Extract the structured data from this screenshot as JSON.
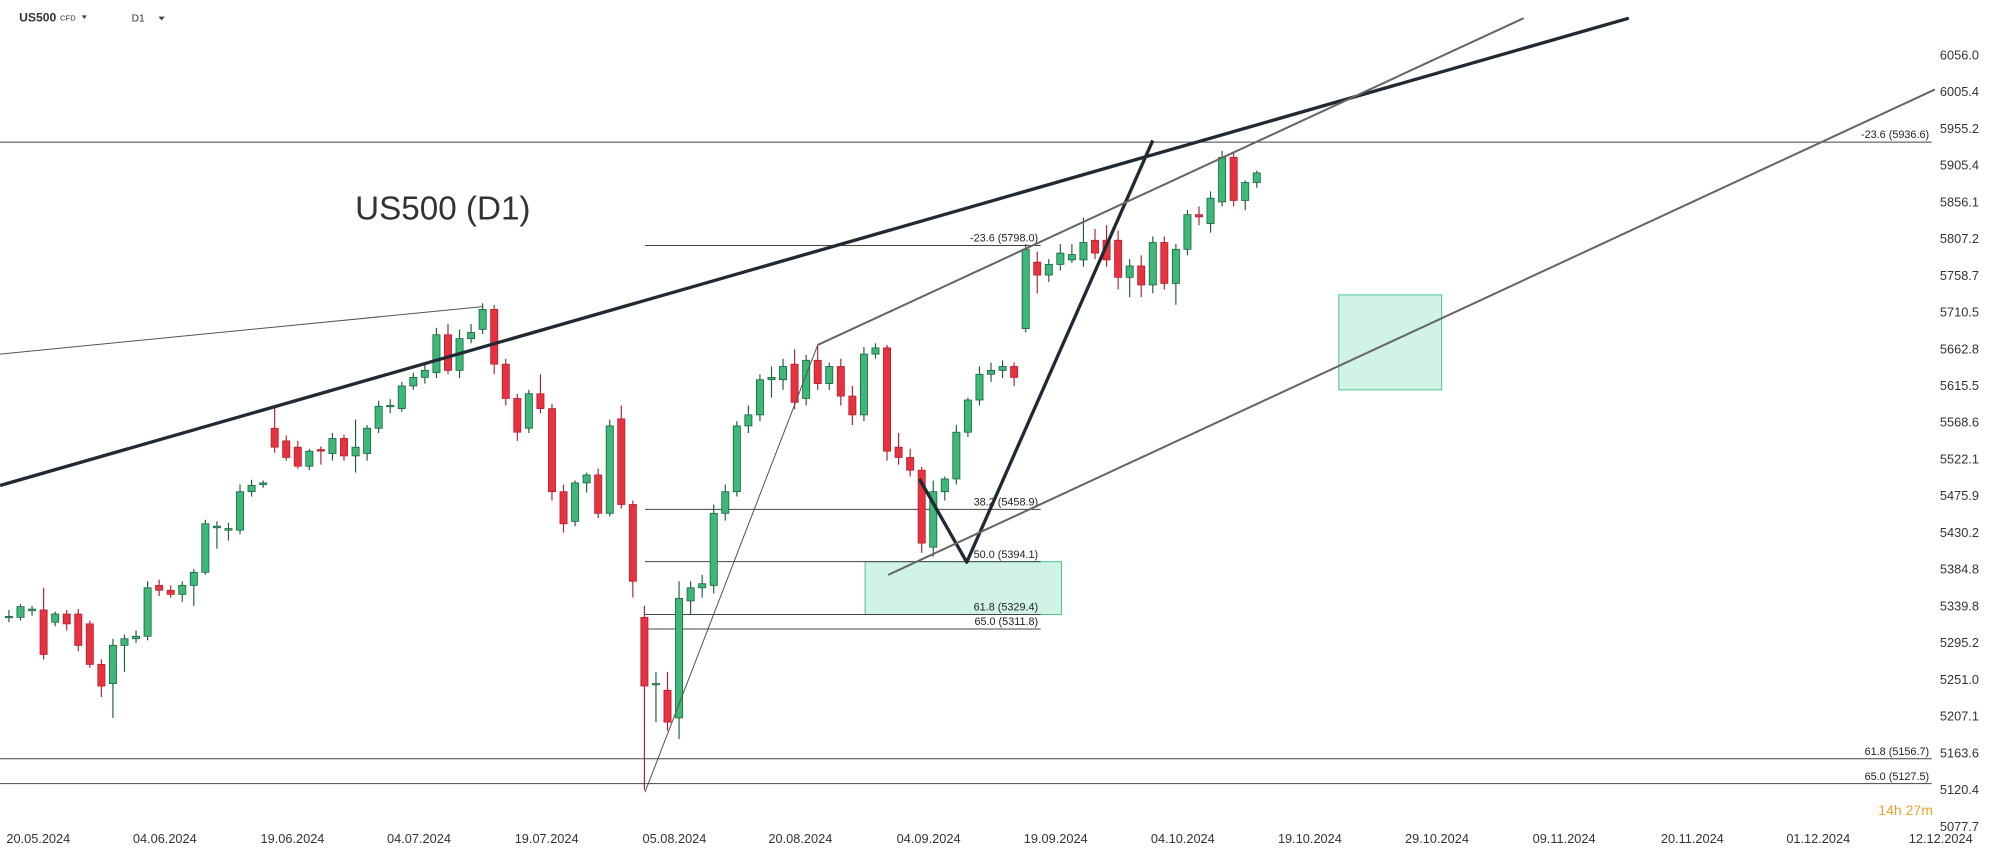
{
  "toolbar": {
    "symbol": "US500",
    "symbol_type": "CFD",
    "interval": "D1"
  },
  "countdown": "14h 27m",
  "chart_data": {
    "type": "candlestick",
    "title": "US500 (D1)",
    "log_scale": true,
    "colors": {
      "up": "#3cb878",
      "down": "#e8323f",
      "up_border": "#1b5e3a",
      "down_border": "#b01f2c"
    },
    "xlim": [
      -0.774,
      167.3
    ],
    "xticks": [
      {
        "value": 2.54,
        "label": "20.05.2024"
      },
      {
        "value": 13.49,
        "label": "04.06.2024"
      },
      {
        "value": 24.54,
        "label": "19.06.2024"
      },
      {
        "value": 35.49,
        "label": "04.07.2024"
      },
      {
        "value": 46.54,
        "label": "19.07.2024"
      },
      {
        "value": 57.6,
        "label": "05.08.2024"
      },
      {
        "value": 68.5,
        "label": "20.08.2024"
      },
      {
        "value": 79.6,
        "label": "04.09.2024"
      },
      {
        "value": 90.6,
        "label": "19.09.2024"
      },
      {
        "value": 101.6,
        "label": "04.10.2024"
      },
      {
        "value": 112.6,
        "label": "19.10.2024"
      },
      {
        "value": 123.6,
        "label": "29.10.2024"
      },
      {
        "value": 134.6,
        "label": "09.11.2024"
      },
      {
        "value": 145.7,
        "label": "20.11.2024"
      },
      {
        "value": 156.6,
        "label": "01.12.2024"
      },
      {
        "value": 167.2,
        "label": "12.12.2024"
      }
    ],
    "ylim": [
      5077.7,
      6132.4
    ],
    "yticks": [
      {
        "value": 6056,
        "label": "6056.0"
      },
      {
        "value": 6005.4,
        "label": "6005.4"
      },
      {
        "value": 5955.2,
        "label": "5955.2"
      },
      {
        "value": 5905.4,
        "label": "5905.4"
      },
      {
        "value": 5856.1,
        "label": "5856.1"
      },
      {
        "value": 5807.2,
        "label": "5807.2"
      },
      {
        "value": 5758.7,
        "label": "5758.7"
      },
      {
        "value": 5710.5,
        "label": "5710.5"
      },
      {
        "value": 5662.8,
        "label": "5662.8"
      },
      {
        "value": 5615.5,
        "label": "5615.5"
      },
      {
        "value": 5568.6,
        "label": "5568.6"
      },
      {
        "value": 5522.1,
        "label": "5522.1"
      },
      {
        "value": 5475.9,
        "label": "5475.9"
      },
      {
        "value": 5430.2,
        "label": "5430.2"
      },
      {
        "value": 5384.8,
        "label": "5384.8"
      },
      {
        "value": 5339.8,
        "label": "5339.8"
      },
      {
        "value": 5295.2,
        "label": "5295.2"
      },
      {
        "value": 5251,
        "label": "5251.0"
      },
      {
        "value": 5207.1,
        "label": "5207.1"
      },
      {
        "value": 5163.6,
        "label": "5163.6"
      },
      {
        "value": 5120.4,
        "label": "5120.4"
      },
      {
        "value": 5077.7,
        "label": "5077.7"
      }
    ],
    "ohlc": [
      [
        5326,
        5335,
        5320,
        5327
      ],
      [
        5326,
        5342,
        5322,
        5339
      ],
      [
        5334,
        5340,
        5328,
        5336
      ],
      [
        5335,
        5362,
        5275,
        5281
      ],
      [
        5320,
        5333,
        5315,
        5330
      ],
      [
        5330,
        5335,
        5310,
        5318
      ],
      [
        5330,
        5336,
        5285,
        5292
      ],
      [
        5318,
        5322,
        5265,
        5269
      ],
      [
        5269,
        5275,
        5230,
        5243
      ],
      [
        5246,
        5300,
        5205,
        5292
      ],
      [
        5292,
        5305,
        5260,
        5300
      ],
      [
        5300,
        5310,
        5295,
        5303
      ],
      [
        5303,
        5370,
        5298,
        5362
      ],
      [
        5365,
        5372,
        5352,
        5359
      ],
      [
        5359,
        5365,
        5350,
        5354
      ],
      [
        5354,
        5370,
        5345,
        5365
      ],
      [
        5365,
        5385,
        5340,
        5381
      ],
      [
        5381,
        5446,
        5378,
        5441
      ],
      [
        5436,
        5444,
        5410,
        5438
      ],
      [
        5433,
        5442,
        5420,
        5435
      ],
      [
        5433,
        5490,
        5428,
        5481
      ],
      [
        5481,
        5496,
        5475,
        5489
      ],
      [
        5490,
        5495,
        5486,
        5492
      ],
      [
        5561,
        5590,
        5530,
        5537
      ],
      [
        5545,
        5552,
        5520,
        5524
      ],
      [
        5537,
        5545,
        5510,
        5513
      ],
      [
        5513,
        5535,
        5508,
        5532
      ],
      [
        5534,
        5538,
        5515,
        5532
      ],
      [
        5529,
        5555,
        5520,
        5548
      ],
      [
        5548,
        5553,
        5520,
        5526
      ],
      [
        5526,
        5572,
        5505,
        5537
      ],
      [
        5529,
        5565,
        5520,
        5561
      ],
      [
        5561,
        5596,
        5555,
        5589
      ],
      [
        5589,
        5598,
        5580,
        5590
      ],
      [
        5586,
        5620,
        5582,
        5615
      ],
      [
        5615,
        5632,
        5610,
        5626
      ],
      [
        5626,
        5642,
        5618,
        5635
      ],
      [
        5632,
        5690,
        5625,
        5681
      ],
      [
        5681,
        5695,
        5630,
        5635
      ],
      [
        5635,
        5688,
        5625,
        5676
      ],
      [
        5676,
        5695,
        5670,
        5684
      ],
      [
        5688,
        5722,
        5682,
        5714
      ],
      [
        5714,
        5720,
        5630,
        5643
      ],
      [
        5643,
        5650,
        5590,
        5599
      ],
      [
        5599,
        5605,
        5545,
        5556
      ],
      [
        5561,
        5610,
        5555,
        5605
      ],
      [
        5605,
        5630,
        5580,
        5586
      ],
      [
        5586,
        5592,
        5470,
        5481
      ],
      [
        5481,
        5490,
        5430,
        5441
      ],
      [
        5444,
        5495,
        5438,
        5492
      ],
      [
        5492,
        5505,
        5480,
        5502
      ],
      [
        5502,
        5510,
        5448,
        5454
      ],
      [
        5454,
        5572,
        5450,
        5564
      ],
      [
        5573,
        5590,
        5460,
        5465
      ],
      [
        5465,
        5470,
        5350,
        5370
      ],
      [
        5326,
        5340,
        5120,
        5243
      ],
      [
        5246,
        5260,
        5200,
        5246
      ],
      [
        5238,
        5260,
        5190,
        5200
      ],
      [
        5205,
        5370,
        5180,
        5349
      ],
      [
        5346,
        5370,
        5330,
        5362
      ],
      [
        5362,
        5378,
        5350,
        5367
      ],
      [
        5365,
        5465,
        5355,
        5454
      ],
      [
        5454,
        5490,
        5445,
        5481
      ],
      [
        5481,
        5570,
        5475,
        5564
      ],
      [
        5564,
        5590,
        5555,
        5578
      ],
      [
        5578,
        5630,
        5570,
        5623
      ],
      [
        5623,
        5640,
        5600,
        5626
      ],
      [
        5623,
        5650,
        5610,
        5640
      ],
      [
        5643,
        5662,
        5585,
        5594
      ],
      [
        5599,
        5655,
        5590,
        5648
      ],
      [
        5648,
        5668,
        5610,
        5618
      ],
      [
        5618,
        5645,
        5610,
        5640
      ],
      [
        5640,
        5650,
        5590,
        5602
      ],
      [
        5602,
        5615,
        5565,
        5578
      ],
      [
        5578,
        5665,
        5570,
        5656
      ],
      [
        5656,
        5670,
        5650,
        5664
      ],
      [
        5664,
        5668,
        5520,
        5532
      ],
      [
        5537,
        5555,
        5515,
        5524
      ],
      [
        5524,
        5535,
        5500,
        5508
      ],
      [
        5508,
        5512,
        5405,
        5417
      ],
      [
        5412,
        5495,
        5400,
        5481
      ],
      [
        5481,
        5500,
        5470,
        5497
      ],
      [
        5497,
        5565,
        5490,
        5556
      ],
      [
        5556,
        5600,
        5550,
        5597
      ],
      [
        5597,
        5640,
        5590,
        5630
      ],
      [
        5630,
        5645,
        5620,
        5635
      ],
      [
        5635,
        5648,
        5625,
        5640
      ],
      [
        5640,
        5645,
        5615,
        5626
      ],
      [
        5689,
        5800,
        5684,
        5793
      ],
      [
        5776,
        5790,
        5735,
        5759
      ],
      [
        5759,
        5780,
        5750,
        5773
      ],
      [
        5773,
        5800,
        5765,
        5788
      ],
      [
        5779,
        5800,
        5775,
        5786
      ],
      [
        5779,
        5835,
        5770,
        5802
      ],
      [
        5805,
        5820,
        5780,
        5788
      ],
      [
        5805,
        5825,
        5770,
        5779
      ],
      [
        5805,
        5818,
        5740,
        5756
      ],
      [
        5756,
        5780,
        5730,
        5771
      ],
      [
        5771,
        5785,
        5730,
        5746
      ],
      [
        5746,
        5810,
        5735,
        5802
      ],
      [
        5802,
        5810,
        5740,
        5748
      ],
      [
        5748,
        5800,
        5720,
        5793
      ],
      [
        5793,
        5845,
        5785,
        5839
      ],
      [
        5839,
        5850,
        5825,
        5836
      ],
      [
        5827,
        5870,
        5815,
        5861
      ],
      [
        5856,
        5925,
        5850,
        5916
      ],
      [
        5916,
        5922,
        5850,
        5858
      ],
      [
        5858,
        5885,
        5845,
        5882
      ],
      [
        5882,
        5898,
        5875,
        5895
      ]
    ],
    "fib_levels": [
      {
        "label": "-23.6 (5936.6)",
        "price": 5936.6,
        "span": "full"
      },
      {
        "label": "61.8 (5156.7)",
        "price": 5156.7,
        "span": "full"
      },
      {
        "label": "65.0 (5127.5)",
        "price": 5127.5,
        "span": "full"
      },
      {
        "label": "-23.6 (5798.0)",
        "price": 5798.0,
        "x": [
          55.05,
          89.3
        ]
      },
      {
        "label": "38.2 (5458.9)",
        "price": 5458.9,
        "x": [
          55.05,
          89.3
        ]
      },
      {
        "label": "50.0 (5394.1)",
        "price": 5394.1,
        "x": [
          55.05,
          89.3
        ]
      },
      {
        "label": "61.8 (5329.4)",
        "price": 5329.4,
        "x": [
          55.05,
          89.3
        ]
      },
      {
        "label": "65.0 (5311.8)",
        "price": 5311.8,
        "x": [
          55.05,
          89.3
        ]
      }
    ],
    "zones": [
      {
        "x": [
          74.1,
          91.1
        ],
        "y": [
          5329.4,
          5394.1
        ]
      },
      {
        "x": [
          115.1,
          124.0
        ],
        "y": [
          5610,
          5733
        ]
      }
    ],
    "trendlines": [
      {
        "style": "heavy",
        "x": [
          -0.77,
          140.2
        ],
        "y": [
          5488.8,
          6107
        ]
      },
      {
        "style": "heavy",
        "x": [
          78.8,
          82.9,
          99.0
        ],
        "y": [
          5497,
          5393.5,
          5938.8
        ]
      },
      {
        "style": "medium",
        "x": [
          70.0,
          131.1
        ],
        "y": [
          5667.8,
          6107
        ]
      },
      {
        "style": "medium",
        "x": [
          76.1,
          166.7
        ],
        "y": [
          5377.8,
          6008.4
        ]
      },
      {
        "style": "light",
        "x": [
          -0.77,
          41.0
        ],
        "y": [
          5656,
          5717.6
        ]
      },
      {
        "style": "light",
        "x": [
          55.05,
          70.0
        ],
        "y": [
          5117.4,
          5667.8
        ]
      }
    ]
  }
}
